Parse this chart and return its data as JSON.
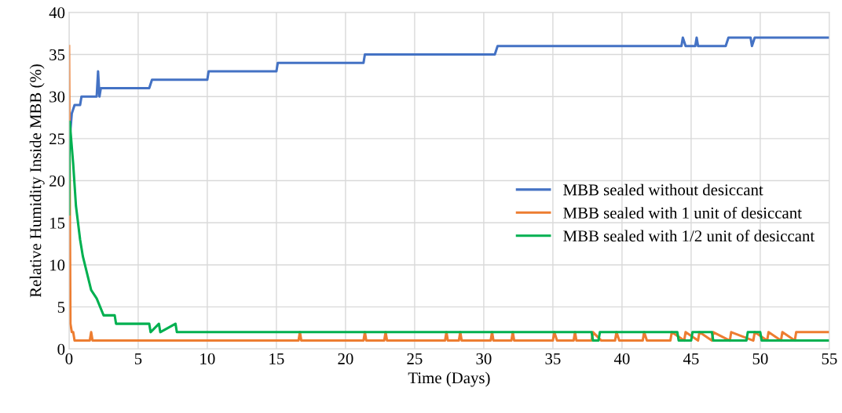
{
  "chart_data": {
    "type": "line",
    "xlabel": "Time (Days)",
    "ylabel": "Relative Humidity Inside MBB (%)",
    "xlim": [
      0,
      55
    ],
    "ylim": [
      0,
      40
    ],
    "xticks": [
      0,
      5,
      10,
      15,
      20,
      25,
      30,
      35,
      40,
      45,
      50,
      55
    ],
    "yticks": [
      0,
      5,
      10,
      15,
      20,
      25,
      30,
      35,
      40
    ],
    "grid": true,
    "legend": "right",
    "marker": "none",
    "line_style": "solid",
    "series": [
      {
        "name": "MBB sealed without desiccant",
        "color": "#4472c4",
        "x": [
          0.1,
          0.2,
          0.4,
          0.8,
          0.9,
          2.0,
          2.1,
          2.2,
          2.3,
          5.8,
          6.0,
          10.0,
          10.1,
          15.0,
          15.1,
          21.3,
          21.4,
          30.8,
          31.0,
          44.3,
          44.4,
          44.6,
          45.3,
          45.4,
          45.5,
          47.5,
          47.7,
          49.3,
          49.4,
          49.6,
          55
        ],
        "values": [
          26,
          28,
          29,
          29,
          30,
          30,
          33,
          30,
          31,
          31,
          32,
          32,
          33,
          33,
          34,
          34,
          35,
          35,
          36,
          36,
          37,
          36,
          36,
          37,
          36,
          36,
          37,
          37,
          36,
          37,
          37
        ]
      },
      {
        "name": "MBB sealed with 1 unit of desiccant",
        "color": "#ed7d31",
        "x": [
          0,
          0.1,
          0.2,
          0.3,
          0.4,
          1.5,
          1.6,
          1.7,
          16.6,
          16.7,
          16.8,
          21.3,
          21.4,
          21.5,
          22.8,
          22.9,
          23.0,
          27.2,
          27.3,
          27.4,
          28.2,
          28.3,
          28.4,
          30.5,
          30.6,
          30.7,
          32.0,
          32.1,
          32.2,
          35.0,
          35.1,
          35.3,
          36.5,
          36.6,
          36.7,
          37.8,
          37.9,
          38.5,
          39.5,
          39.6,
          39.8,
          41.5,
          41.6,
          41.8,
          43.5,
          43.6,
          44.5,
          44.6,
          45.5,
          45.6,
          46.5,
          46.6,
          47.8,
          47.9,
          49.5,
          49.6,
          50.5,
          50.6,
          51.5,
          51.6,
          52.5,
          52.6,
          53.5,
          55
        ],
        "values": [
          36,
          3,
          2,
          2,
          1,
          1,
          2,
          1,
          1,
          2,
          1,
          1,
          2,
          1,
          1,
          2,
          1,
          1,
          2,
          1,
          1,
          2,
          1,
          1,
          2,
          1,
          1,
          2,
          1,
          1,
          2,
          1,
          1,
          2,
          1,
          1,
          2,
          1,
          1,
          2,
          1,
          1,
          2,
          1,
          1,
          2,
          1,
          2,
          1,
          2,
          1,
          2,
          1,
          2,
          1,
          2,
          1,
          2,
          1,
          2,
          1,
          2,
          2,
          2
        ]
      },
      {
        "name": "MBB sealed with 1/2 unit of desiccant",
        "color": "#00b050",
        "x": [
          0,
          0.05,
          0.3,
          0.5,
          0.8,
          1.0,
          1.3,
          1.6,
          2.0,
          2.5,
          3.3,
          3.4,
          5.8,
          5.9,
          6.5,
          6.6,
          7.7,
          7.8,
          37.8,
          37.9,
          38.3,
          38.4,
          44.0,
          44.1,
          45.0,
          45.1,
          46.5,
          46.6,
          49.0,
          49.1,
          50.0,
          50.1,
          53.0,
          53.1,
          55
        ],
        "values": [
          16,
          27,
          22,
          17,
          13,
          11,
          9,
          7,
          6,
          4,
          4,
          3,
          3,
          2,
          3,
          2,
          3,
          2,
          2,
          1,
          1,
          2,
          2,
          1,
          1,
          2,
          2,
          1,
          1,
          2,
          2,
          1,
          1,
          1,
          1
        ]
      }
    ]
  }
}
